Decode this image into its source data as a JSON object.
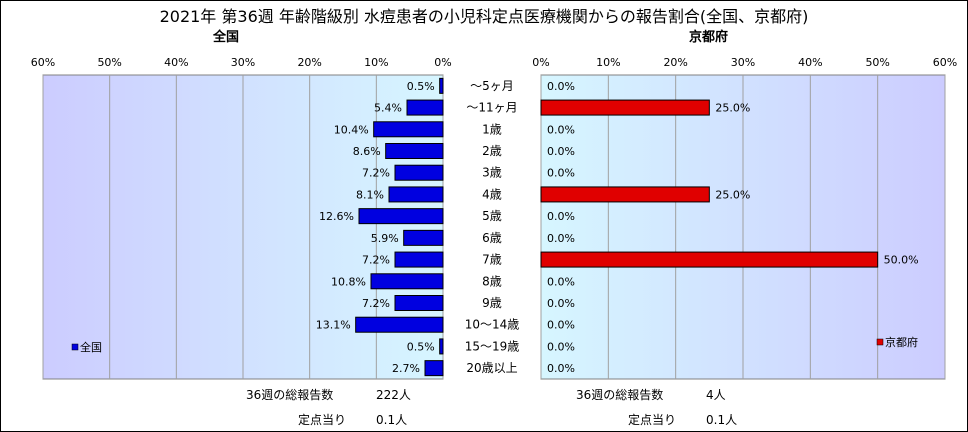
{
  "title": "2021年 第36週 年齢階級別 水痘患者の小児科定点医療機関からの報告割合(全国、京都府)",
  "left_label": "全国",
  "right_label": "京都府",
  "chart_data": [
    {
      "type": "bar",
      "orientation": "horizontal",
      "direction": "right-to-left",
      "title": "全国",
      "categories": [
        "～5ヶ月",
        "～11ヶ月",
        "1歳",
        "2歳",
        "3歳",
        "4歳",
        "5歳",
        "6歳",
        "7歳",
        "8歳",
        "9歳",
        "10～14歳",
        "15～19歳",
        "20歳以上"
      ],
      "series": [
        {
          "name": "全国",
          "values": [
            0.5,
            5.4,
            10.4,
            8.6,
            7.2,
            8.1,
            12.6,
            5.9,
            7.2,
            10.8,
            7.2,
            13.1,
            0.5,
            2.7
          ],
          "color": "#0000e0"
        }
      ],
      "value_labels": [
        "0.5%",
        "5.4%",
        "10.4%",
        "8.6%",
        "7.2%",
        "8.1%",
        "12.6%",
        "5.9%",
        "7.2%",
        "10.8%",
        "7.2%",
        "13.1%",
        "0.5%",
        "2.7%"
      ],
      "xlim": [
        0,
        60
      ],
      "ticks": [
        0,
        10,
        20,
        30,
        40,
        50,
        60
      ],
      "tick_labels": [
        "0%",
        "10%",
        "20%",
        "30%",
        "40%",
        "50%",
        "60%"
      ],
      "grid": true,
      "legend": "bottom-left"
    },
    {
      "type": "bar",
      "orientation": "horizontal",
      "direction": "left-to-right",
      "title": "京都府",
      "categories": [
        "～5ヶ月",
        "～11ヶ月",
        "1歳",
        "2歳",
        "3歳",
        "4歳",
        "5歳",
        "6歳",
        "7歳",
        "8歳",
        "9歳",
        "10～14歳",
        "15～19歳",
        "20歳以上"
      ],
      "series": [
        {
          "name": "京都府",
          "values": [
            0,
            25,
            0,
            0,
            0,
            25,
            0,
            0,
            50,
            0,
            0,
            0,
            0,
            0
          ],
          "color": "#e00000"
        }
      ],
      "value_labels": [
        "0.0%",
        "25.0%",
        "0.0%",
        "0.0%",
        "0.0%",
        "25.0%",
        "0.0%",
        "0.0%",
        "50.0%",
        "0.0%",
        "0.0%",
        "0.0%",
        "0.0%",
        "0.0%"
      ],
      "xlim": [
        0,
        60
      ],
      "ticks": [
        0,
        10,
        20,
        30,
        40,
        50,
        60
      ],
      "tick_labels": [
        "0%",
        "10%",
        "20%",
        "30%",
        "40%",
        "50%",
        "60%"
      ],
      "grid": true,
      "legend": "bottom-right"
    }
  ],
  "stats": {
    "national_total_label": "36週の総報告数",
    "national_total": "222人",
    "national_per_label": "定点当り",
    "national_per": "0.1人",
    "kyoto_total_label": "36週の総報告数",
    "kyoto_total": "4人",
    "kyoto_per_label": "定点当り",
    "kyoto_per": "0.1人"
  }
}
